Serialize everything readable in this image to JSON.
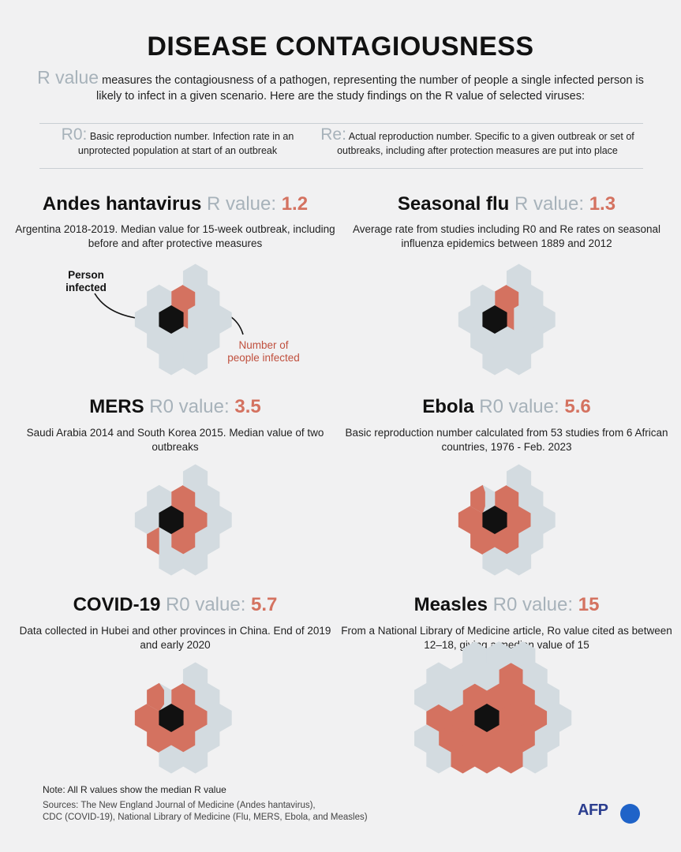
{
  "header": {
    "title": "DISEASE CONTAGIOUSNESS",
    "intro_term": "R value",
    "intro_text": "measures the contagiousness of a pathogen, representing the number of people a single infected person is likely to infect in a given scenario. Here are the study findings on the R value of selected viruses:"
  },
  "definitions": [
    {
      "term": "R0:",
      "text": "Basic reproduction number. Infection rate in an unprotected population at start of an outbreak"
    },
    {
      "term": "Re:",
      "text": "Actual reproduction number. Specific to a given outbreak or set of outbreaks, including after protection measures are put into place"
    }
  ],
  "annotations": {
    "person_infected": "Person infected",
    "people_infected": "Number of people infected"
  },
  "colors": {
    "infected": "#d47260",
    "uninfected": "#d3dbe0",
    "patient_zero": "#111111",
    "label_grey": "#a7b2ba"
  },
  "chart_data": {
    "type": "hexagon-pictogram",
    "viruses": [
      {
        "name": "Andes hantavirus",
        "r_label": "R value:",
        "r_value": 1.2,
        "r_text": "1.2",
        "description": "Argentina 2018-2019. Median value for 15-week outbreak, including before and after protective measures"
      },
      {
        "name": "Seasonal flu",
        "r_label": "R value:",
        "r_value": 1.3,
        "r_text": "1.3",
        "description": "Average rate from studies including R0 and Re rates on seasonal influenza epidemics between 1889 and 2012"
      },
      {
        "name": "MERS",
        "r_label": "R0 value:",
        "r_value": 3.5,
        "r_text": "3.5",
        "description": "Saudi Arabia 2014 and South Korea 2015. Median value of two outbreaks"
      },
      {
        "name": "Ebola",
        "r_label": "R0 value:",
        "r_value": 5.6,
        "r_text": "5.6",
        "description": "Basic reproduction number calculated from 53 studies from 6 African countries, 1976 - Feb. 2023"
      },
      {
        "name": "COVID-19",
        "r_label": "R0 value:",
        "r_value": 5.7,
        "r_text": "5.7",
        "description": "Data collected in Hubei and other provinces in China. End of 2019 and early 2020"
      },
      {
        "name": "Measles",
        "r_label": "R0 value:",
        "r_value": 15,
        "r_text": "15",
        "description": "From a National Library of Medicine article, Ro value cited as between 12–18, giving a median value of 15"
      }
    ]
  },
  "footer": {
    "note": "Note: All R values show the median R value",
    "sources_line1": "Sources: The New England Journal of Medicine (Andes hantavirus),",
    "sources_line2": "CDC (COVID-19), National Library of Medicine (Flu, MERS, Ebola, and Measles)",
    "logo": "AFP"
  }
}
